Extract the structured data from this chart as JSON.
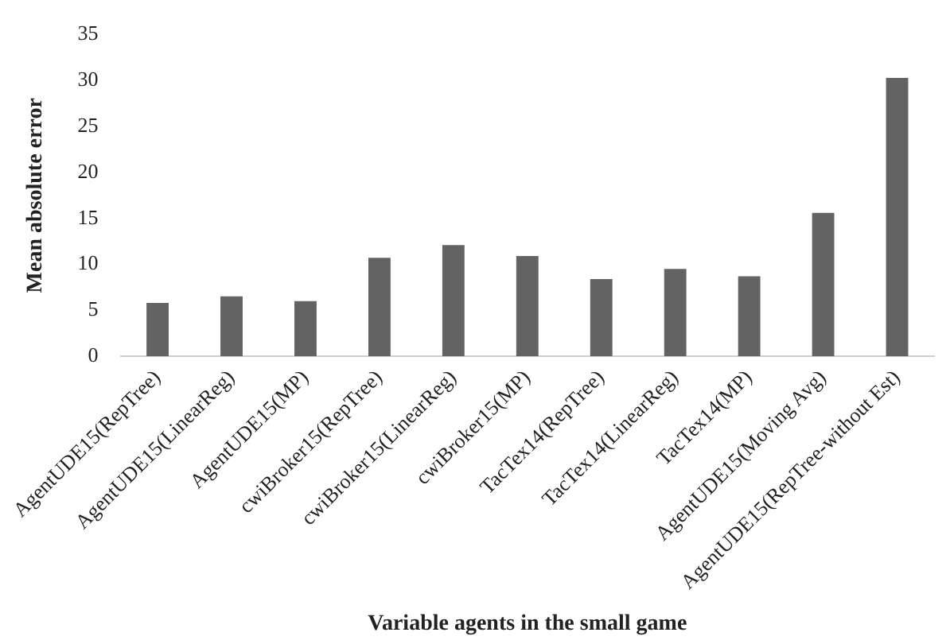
{
  "chart_data": {
    "type": "bar",
    "xlabel": "Variable agents in the small game",
    "ylabel": "Mean absolute error",
    "categories": [
      "AgentUDE15(RepTree)",
      "AgentUDE15(LinearReg)",
      "AgentUDE15(MP)",
      "cwiBroker15(RepTree)",
      "cwiBroker15(LinearReg)",
      "cwiBroker15(MP)",
      "TacTex14(RepTree)",
      "TacTex14(LinearReg)",
      "TacTex14(MP)",
      "AgentUDE15(Moving Avg)",
      "AgentUDE15(RepTree-without Est)"
    ],
    "values": [
      5.8,
      6.5,
      6.0,
      10.7,
      12.1,
      10.9,
      8.4,
      9.5,
      8.7,
      15.6,
      30.3
    ],
    "color": "#636363",
    "ylim": [
      0,
      35
    ],
    "yticks": [
      0,
      5,
      10,
      15,
      20,
      25,
      30,
      35
    ],
    "grid": false,
    "legend": false
  }
}
